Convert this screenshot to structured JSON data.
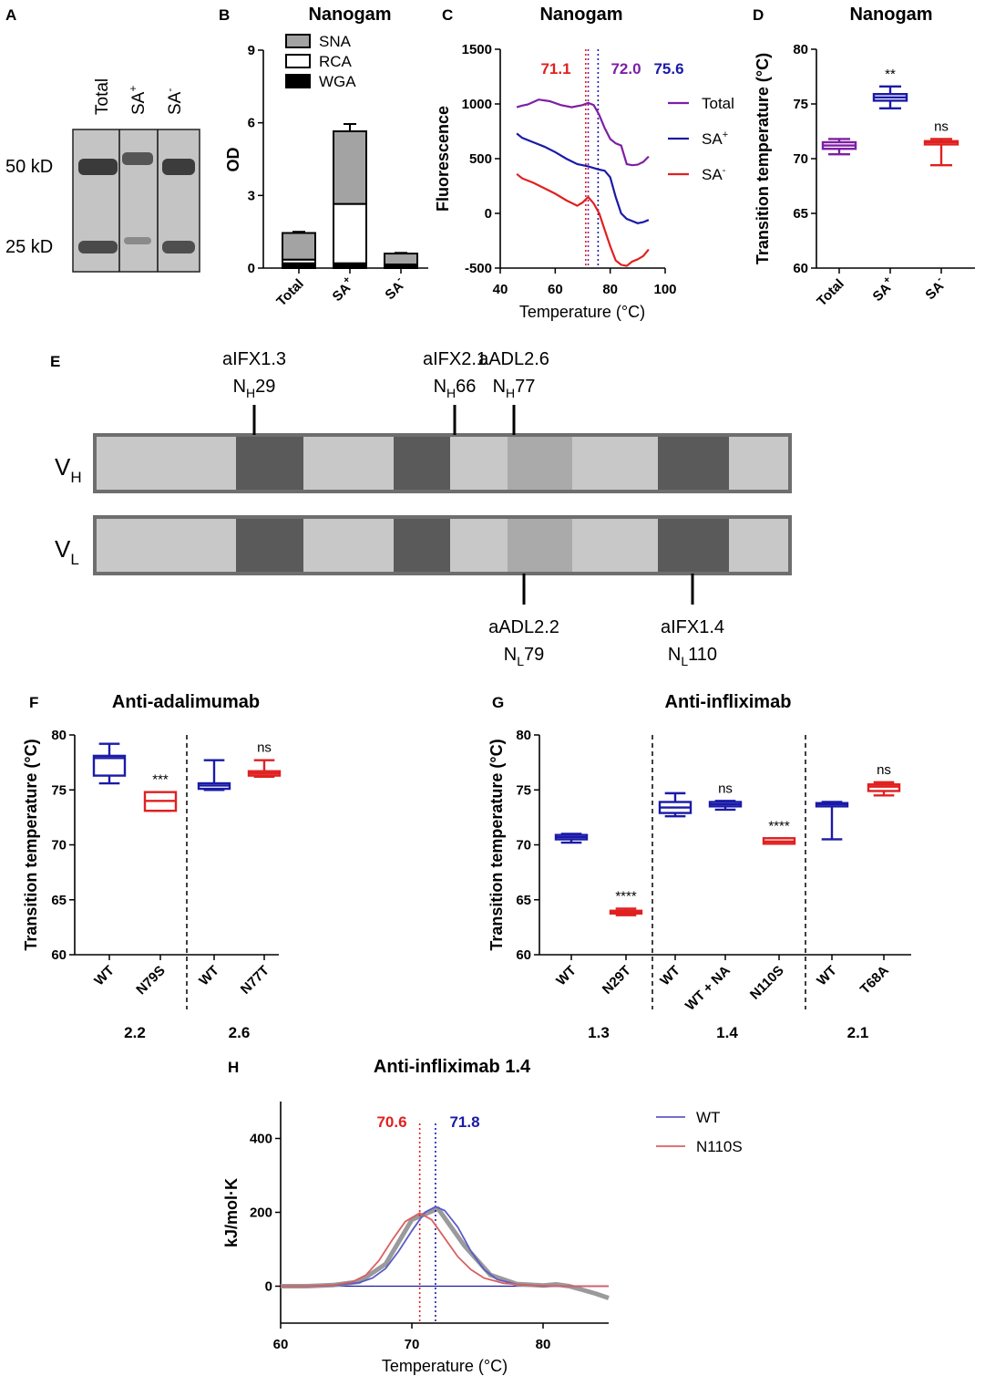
{
  "colors": {
    "blue": "#1a1aa8",
    "red": "#e02020",
    "purple": "#7d1fa5",
    "gray": "#a3a3a3",
    "dark": "#5a5a5a",
    "light": "#c8c8c8",
    "mid": "#aaaaaa"
  },
  "panels": {
    "A": "A",
    "B": "B",
    "C": "C",
    "D": "D",
    "E": "E",
    "F": "F",
    "G": "G",
    "H": "H"
  },
  "gel": {
    "lanes": [
      "Total",
      "SA",
      "SA"
    ],
    "lane_sup": [
      "",
      "+",
      "-"
    ],
    "markers": [
      "50 kD",
      "25 kD"
    ]
  },
  "chart_data": [
    {
      "id": "B",
      "type": "bar",
      "title": "Nanogam",
      "ylabel": "OD",
      "ylim": [
        0,
        9
      ],
      "yticks": [
        "0",
        "3",
        "6",
        "9"
      ],
      "categories": [
        "Total",
        "SA",
        "SA"
      ],
      "category_sup": [
        "",
        "+",
        "-"
      ],
      "series": [
        {
          "name": "SNA",
          "values": [
            1.1,
            3.0,
            0.45
          ],
          "color": "#a3a3a3"
        },
        {
          "name": "RCA",
          "values": [
            0.15,
            2.45,
            0.0
          ],
          "color": "#ffffff"
        },
        {
          "name": "WGA",
          "values": [
            0.2,
            0.2,
            0.15
          ],
          "color": "#000000"
        }
      ],
      "errors": [
        0.05,
        0.3,
        0.03
      ]
    },
    {
      "id": "C",
      "type": "line",
      "title": "Nanogam",
      "xlabel": "Temperature (°C)",
      "ylabel": "Fluorescence",
      "xlim": [
        40,
        100
      ],
      "ylim": [
        -500,
        1500
      ],
      "xticks": [
        "40",
        "60",
        "80",
        "100"
      ],
      "yticks": [
        "-500",
        "0",
        "500",
        "1000",
        "1500"
      ],
      "annotations": [
        {
          "text": "71.1",
          "x": 71.1
        },
        {
          "text": "72.0",
          "x": 72.0
        },
        {
          "text": "75.6",
          "x": 75.6
        }
      ],
      "series": [
        {
          "name": "Total",
          "sup": "",
          "color": "#7d1fa5",
          "x": [
            46,
            48,
            50,
            54,
            58,
            62,
            66,
            70,
            72,
            74,
            76,
            78,
            80,
            82,
            84,
            86,
            88,
            90,
            92,
            94
          ],
          "y": [
            970,
            985,
            995,
            1040,
            1025,
            990,
            970,
            990,
            1010,
            990,
            900,
            780,
            680,
            640,
            620,
            450,
            440,
            445,
            470,
            520
          ]
        },
        {
          "name": "SA",
          "sup": "+",
          "color": "#1a1aa8",
          "x": [
            46,
            48,
            52,
            56,
            60,
            64,
            68,
            72,
            76,
            78,
            80,
            82,
            84,
            86,
            88,
            90,
            92,
            94
          ],
          "y": [
            730,
            690,
            650,
            610,
            560,
            500,
            450,
            430,
            400,
            390,
            330,
            150,
            0,
            -50,
            -70,
            -90,
            -80,
            -60
          ]
        },
        {
          "name": "SA",
          "sup": "-",
          "color": "#e02020",
          "x": [
            46,
            48,
            52,
            56,
            60,
            64,
            68,
            70,
            72,
            74,
            76,
            78,
            80,
            82,
            84,
            86,
            88,
            90,
            92,
            94
          ],
          "y": [
            360,
            320,
            280,
            230,
            180,
            120,
            70,
            100,
            150,
            90,
            0,
            -150,
            -300,
            -430,
            -470,
            -480,
            -440,
            -420,
            -390,
            -330
          ]
        }
      ]
    },
    {
      "id": "D",
      "type": "box",
      "title": "Nanogam",
      "ylabel": "Transition temperature (°C)",
      "ylim": [
        60,
        80
      ],
      "yticks": [
        "60",
        "65",
        "70",
        "75",
        "80"
      ],
      "categories": [
        "Total",
        "SA",
        "SA"
      ],
      "category_sup": [
        "",
        "+",
        "-"
      ],
      "boxes": [
        {
          "min": 70.4,
          "q1": 70.9,
          "median": 71.2,
          "q3": 71.5,
          "max": 71.8,
          "color": "#7d1fa5",
          "sig": ""
        },
        {
          "min": 74.6,
          "q1": 75.3,
          "median": 75.6,
          "q3": 75.9,
          "max": 76.6,
          "color": "#1a1aa8",
          "sig": "**"
        },
        {
          "min": 69.4,
          "q1": 71.3,
          "median": 71.5,
          "q3": 71.6,
          "max": 71.8,
          "color": "#e02020",
          "sig": "ns"
        }
      ]
    },
    {
      "id": "F",
      "type": "box",
      "title": "Anti-adalimumab",
      "ylabel": "Transition temperature (°C)",
      "ylim": [
        60,
        80
      ],
      "yticks": [
        "60",
        "65",
        "70",
        "75",
        "80"
      ],
      "categories": [
        "WT",
        "N79S",
        "WT",
        "N77T"
      ],
      "groups": [
        {
          "label": "2.2",
          "span": [
            0,
            1
          ]
        },
        {
          "label": "2.6",
          "span": [
            2,
            3
          ]
        }
      ],
      "boxes": [
        {
          "min": 75.6,
          "q1": 76.3,
          "median": 77.9,
          "q3": 78.1,
          "max": 79.2,
          "color": "#1a1aa8",
          "sig": ""
        },
        {
          "min": 73.1,
          "q1": 73.1,
          "median": 74.0,
          "q3": 74.8,
          "max": 74.8,
          "color": "#e02020",
          "sig": "***"
        },
        {
          "min": 75.0,
          "q1": 75.1,
          "median": 75.4,
          "q3": 75.6,
          "max": 77.7,
          "color": "#1a1aa8",
          "sig": ""
        },
        {
          "min": 76.2,
          "q1": 76.3,
          "median": 76.5,
          "q3": 76.7,
          "max": 77.7,
          "color": "#e02020",
          "sig": "ns"
        }
      ]
    },
    {
      "id": "G",
      "type": "box",
      "title": "Anti-infliximab",
      "ylabel": "Transition temperature (°C)",
      "ylim": [
        60,
        80
      ],
      "yticks": [
        "60",
        "65",
        "70",
        "75",
        "80"
      ],
      "categories": [
        "WT",
        "N29T",
        "WT",
        "WT + NA",
        "N110S",
        "WT",
        "T68A"
      ],
      "groups": [
        {
          "label": "1.3",
          "span": [
            0,
            1
          ]
        },
        {
          "label": "1.4",
          "span": [
            2,
            4
          ]
        },
        {
          "label": "2.1",
          "span": [
            5,
            6
          ]
        }
      ],
      "boxes": [
        {
          "min": 70.2,
          "q1": 70.5,
          "median": 70.7,
          "q3": 70.9,
          "max": 71.0,
          "color": "#1a1aa8",
          "sig": ""
        },
        {
          "min": 63.6,
          "q1": 63.8,
          "median": 63.9,
          "q3": 64.0,
          "max": 64.2,
          "color": "#e02020",
          "sig": "****"
        },
        {
          "min": 72.6,
          "q1": 72.9,
          "median": 73.4,
          "q3": 73.9,
          "max": 74.7,
          "color": "#1a1aa8",
          "sig": ""
        },
        {
          "min": 73.2,
          "q1": 73.5,
          "median": 73.7,
          "q3": 73.9,
          "max": 74.0,
          "color": "#1a1aa8",
          "sig": "ns"
        },
        {
          "min": 70.1,
          "q1": 70.1,
          "median": 70.3,
          "q3": 70.6,
          "max": 70.6,
          "color": "#e02020",
          "sig": "****"
        },
        {
          "min": 70.5,
          "q1": 73.5,
          "median": 73.7,
          "q3": 73.8,
          "max": 73.9,
          "color": "#1a1aa8",
          "sig": ""
        },
        {
          "min": 74.5,
          "q1": 74.9,
          "median": 75.3,
          "q3": 75.5,
          "max": 75.7,
          "color": "#e02020",
          "sig": "ns"
        }
      ]
    },
    {
      "id": "H",
      "type": "line",
      "title": "Anti-infliximab 1.4",
      "xlabel": "Temperature (°C)",
      "ylabel": "kJ/mol·K",
      "xlim": [
        60,
        85
      ],
      "ylim": [
        -100,
        500
      ],
      "xticks": [
        "60",
        "70",
        "80"
      ],
      "yticks": [
        "0",
        "200",
        "400"
      ],
      "annotations": [
        {
          "text": "70.6",
          "x": 70.6,
          "color": "#e02020"
        },
        {
          "text": "71.8",
          "x": 71.8,
          "color": "#1a1aa8"
        }
      ],
      "series": [
        {
          "name": "WT",
          "color": "#5b5bc8",
          "x": [
            60,
            62,
            64,
            66,
            67,
            68,
            69,
            70,
            71,
            71.8,
            72.5,
            73.5,
            74.5,
            75.5,
            76.5,
            78,
            80,
            82,
            85
          ],
          "y": [
            0,
            0,
            2,
            10,
            22,
            48,
            95,
            150,
            200,
            215,
            205,
            160,
            95,
            45,
            18,
            5,
            0,
            0,
            0
          ]
        },
        {
          "name": "N110S",
          "color": "#d96060",
          "x": [
            60,
            62,
            64,
            65.5,
            66.5,
            67.5,
            68.5,
            69.5,
            70.6,
            71.5,
            72.5,
            73.5,
            74.5,
            75.5,
            77,
            79,
            82,
            85
          ],
          "y": [
            0,
            0,
            3,
            12,
            30,
            70,
            125,
            175,
            198,
            180,
            130,
            80,
            45,
            22,
            8,
            2,
            0,
            0
          ]
        }
      ],
      "gray_x": [
        60,
        62,
        64,
        66,
        68,
        70,
        72,
        74,
        76,
        78,
        80,
        81,
        82,
        83,
        84,
        85
      ],
      "gray_y": [
        0,
        0,
        3,
        12,
        60,
        180,
        210,
        110,
        30,
        6,
        2,
        5,
        0,
        -10,
        -20,
        -32
      ]
    }
  ],
  "domains": {
    "rows": [
      {
        "label": "V",
        "sub": "H"
      },
      {
        "label": "V",
        "sub": "L"
      }
    ],
    "heavy_sites": [
      {
        "name": "aIFX1.3",
        "site": "N",
        "sub": "H",
        "pos": "29"
      },
      {
        "name": "aIFX2.1",
        "site": "N",
        "sub": "H",
        "pos": "66"
      },
      {
        "name": "aADL2.6",
        "site": "N",
        "sub": "H",
        "pos": "77"
      }
    ],
    "light_sites": [
      {
        "name": "aADL2.2",
        "site": "N",
        "sub": "L",
        "pos": "79"
      },
      {
        "name": "aIFX1.4",
        "site": "N",
        "sub": "L",
        "pos": "110"
      }
    ]
  }
}
